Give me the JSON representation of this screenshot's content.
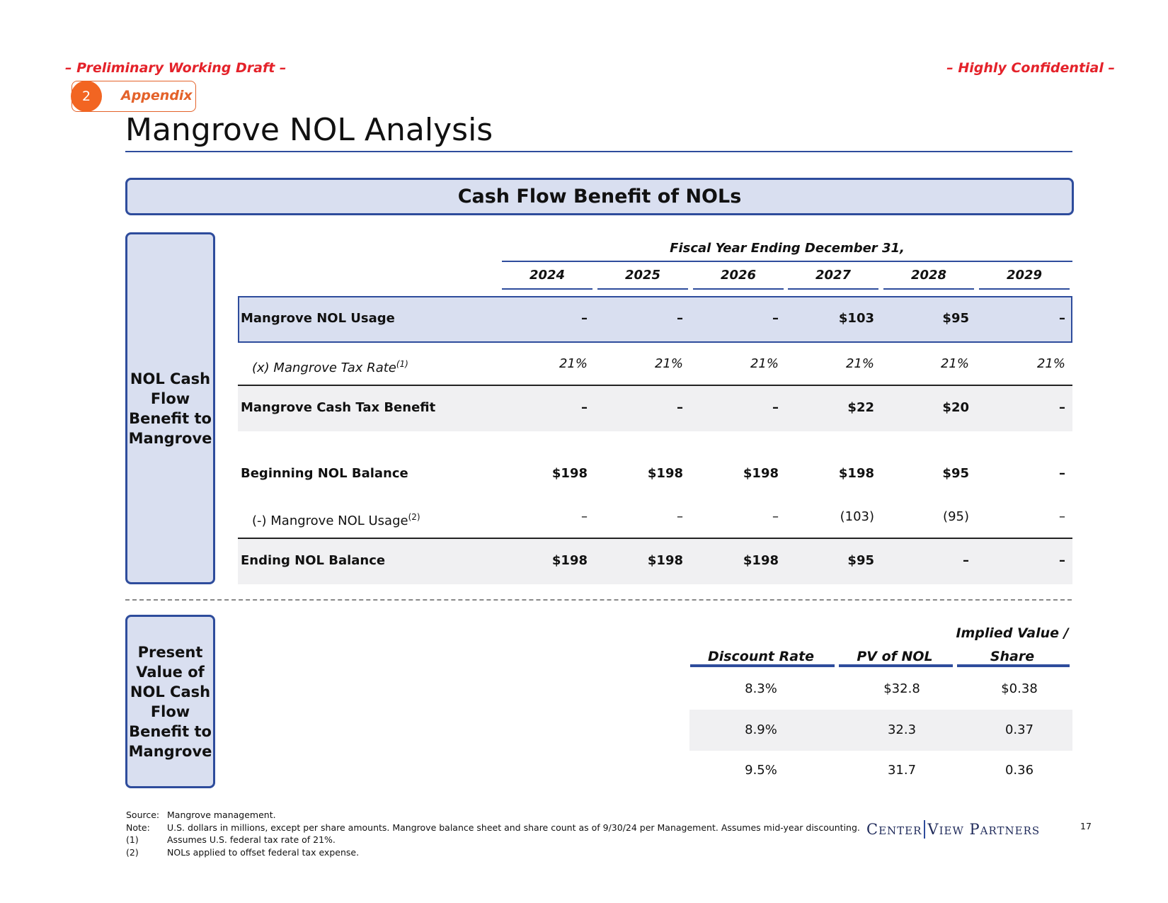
{
  "header": {
    "draft": "– Preliminary Working Draft –",
    "confidential": "– Highly Confidential –",
    "section_number": "2",
    "section": "Appendix",
    "title": "Mangrove NOL Analysis"
  },
  "banner": "Cash Flow Benefit of NOLs",
  "side_labels": [
    "NOL Cash Flow Benefit to Mangrove",
    "Present Value of NOL Cash Flow Benefit to Mangrove"
  ],
  "cash_flow": {
    "period_header": "Fiscal Year Ending December 31,",
    "years": [
      "2024",
      "2025",
      "2026",
      "2027",
      "2028",
      "2029"
    ],
    "rows": [
      {
        "label": "Mangrove NOL Usage",
        "values": [
          "–",
          "–",
          "–",
          "$103",
          "$95",
          "–"
        ]
      },
      {
        "label": "(x) Mangrove Tax Rate",
        "note": "(1)",
        "values": [
          "21%",
          "21%",
          "21%",
          "21%",
          "21%",
          "21%"
        ]
      },
      {
        "label": "Mangrove Cash Tax Benefit",
        "values": [
          "–",
          "–",
          "–",
          "$22",
          "$20",
          "–"
        ]
      },
      {
        "label": "Beginning NOL Balance",
        "values": [
          "$198",
          "$198",
          "$198",
          "$198",
          "$95",
          "–"
        ]
      },
      {
        "label": "(-) Mangrove NOL Usage",
        "note": "(2)",
        "values": [
          "–",
          "–",
          "–",
          "(103)",
          "(95)",
          "–"
        ]
      },
      {
        "label": "Ending NOL Balance",
        "values": [
          "$198",
          "$198",
          "$198",
          "$95",
          "–",
          "–"
        ]
      }
    ]
  },
  "pv_table": {
    "columns": [
      "Discount Rate",
      "PV of NOL",
      "Implied Value / Share"
    ],
    "rows": [
      [
        "8.3%",
        "$32.8",
        "$0.38"
      ],
      [
        "8.9%",
        "32.3",
        "0.37"
      ],
      [
        "9.5%",
        "31.7",
        "0.36"
      ]
    ]
  },
  "footnotes": [
    {
      "key": "Source:",
      "text": "Mangrove management."
    },
    {
      "key": "Note:",
      "text": "U.S. dollars in millions, except per share amounts. Mangrove balance sheet and share count as of 9/30/24 per Management. Assumes mid-year discounting."
    },
    {
      "key": "(1)",
      "text": "Assumes U.S. federal tax rate of 21%."
    },
    {
      "key": "(2)",
      "text": "NOLs applied to offset federal tax expense."
    }
  ],
  "logo": [
    "Center",
    "View Partners"
  ],
  "page_number": "17"
}
